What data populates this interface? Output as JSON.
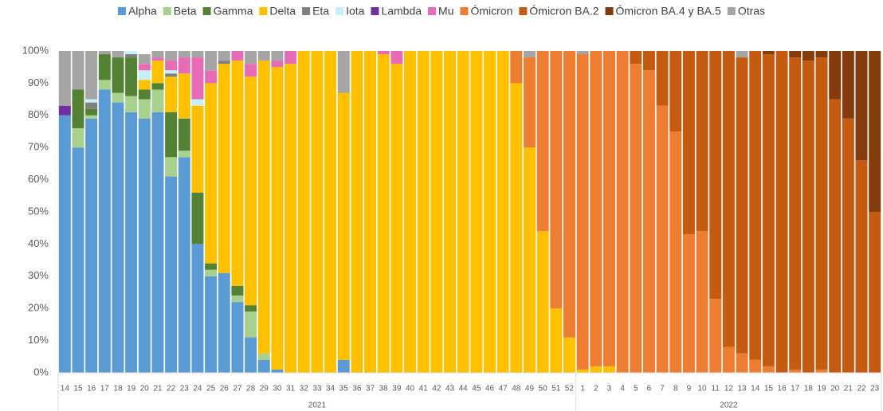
{
  "chart_data": {
    "type": "stacked_bar_100",
    "categories": [
      "14",
      "15",
      "16",
      "17",
      "18",
      "19",
      "20",
      "21",
      "22",
      "23",
      "24",
      "25",
      "26",
      "27",
      "28",
      "29",
      "30",
      "31",
      "32",
      "33",
      "34",
      "35",
      "36",
      "37",
      "38",
      "39",
      "40",
      "41",
      "42",
      "43",
      "44",
      "45",
      "46",
      "47",
      "48",
      "49",
      "50",
      "51",
      "52",
      "1",
      "2",
      "3",
      "4",
      "5",
      "6",
      "7",
      "8",
      "9",
      "10",
      "11",
      "12",
      "13",
      "14",
      "15",
      "16",
      "17",
      "18",
      "19",
      "20",
      "21",
      "22",
      "23"
    ],
    "category_groups": [
      {
        "label": "2021",
        "span": 39
      },
      {
        "label": "2022",
        "span": 23
      }
    ],
    "ylim": [
      0,
      100
    ],
    "yticks": [
      {
        "value": 0,
        "label": "0%"
      },
      {
        "value": 10,
        "label": "10%"
      },
      {
        "value": 20,
        "label": "20%"
      },
      {
        "value": 30,
        "label": "30%"
      },
      {
        "value": 40,
        "label": "40%"
      },
      {
        "value": 50,
        "label": "50%"
      },
      {
        "value": 60,
        "label": "60%"
      },
      {
        "value": 70,
        "label": "70%"
      },
      {
        "value": 80,
        "label": "80%"
      },
      {
        "value": 90,
        "label": "90%"
      },
      {
        "value": 100,
        "label": "100%"
      }
    ],
    "grid": false,
    "legend": "top",
    "series": [
      {
        "name": "Alpha",
        "color": "#5b9bd5",
        "values": [
          80,
          70,
          79,
          88,
          84,
          81,
          79,
          81,
          61,
          67,
          40,
          30,
          31,
          22,
          11,
          4,
          1,
          0,
          0,
          0,
          0,
          4,
          0,
          0,
          0,
          0,
          0,
          0,
          0,
          0,
          0,
          0,
          0,
          0,
          0,
          0,
          0,
          0,
          0,
          0,
          0,
          0,
          0,
          0,
          0,
          0,
          0,
          0,
          0,
          0,
          0,
          0,
          0,
          0,
          0,
          0,
          0,
          0,
          0,
          0,
          0,
          0
        ]
      },
      {
        "name": "Beta",
        "color": "#a9d18e",
        "values": [
          0,
          6,
          1,
          3,
          3,
          5,
          6,
          7,
          6,
          2,
          0,
          2,
          0,
          2,
          8,
          2,
          0,
          0,
          0,
          0,
          0,
          0,
          0,
          0,
          0,
          0,
          0,
          0,
          0,
          0,
          0,
          0,
          0,
          0,
          0,
          0,
          0,
          0,
          0,
          0,
          0,
          0,
          0,
          0,
          0,
          0,
          0,
          0,
          0,
          0,
          0,
          0,
          0,
          0,
          0,
          0,
          0,
          0,
          0,
          0,
          0,
          0
        ]
      },
      {
        "name": "Gamma",
        "color": "#548235",
        "values": [
          0,
          12,
          2,
          8,
          11,
          12,
          3,
          2,
          14,
          10,
          16,
          2,
          0,
          3,
          2,
          0,
          0,
          0,
          0,
          0,
          0,
          0,
          0,
          0,
          0,
          0,
          0,
          0,
          0,
          0,
          0,
          0,
          0,
          0,
          0,
          0,
          0,
          0,
          0,
          0,
          0,
          0,
          0,
          0,
          0,
          0,
          0,
          0,
          0,
          0,
          0,
          0,
          0,
          0,
          0,
          0,
          0,
          0,
          0,
          0,
          0,
          0
        ]
      },
      {
        "name": "Delta",
        "color": "#ffc000",
        "values": [
          0,
          0,
          0,
          0,
          0,
          0,
          3,
          7,
          11,
          14,
          27,
          56,
          65,
          70,
          71,
          91,
          94,
          96,
          100,
          100,
          100,
          83,
          100,
          100,
          99,
          96,
          100,
          100,
          100,
          100,
          100,
          100,
          100,
          100,
          90,
          70,
          44,
          20,
          11,
          1,
          2,
          2,
          0,
          0,
          0,
          0,
          0,
          0,
          0,
          0,
          0,
          0,
          0,
          0,
          0,
          0,
          0,
          0,
          0,
          0,
          0,
          0
        ]
      },
      {
        "name": "Eta",
        "color": "#7f7f7f",
        "values": [
          0,
          0,
          2,
          0,
          0,
          1,
          0,
          0,
          1,
          0,
          0,
          0,
          1,
          0,
          0,
          0,
          0,
          0,
          0,
          0,
          0,
          0,
          0,
          0,
          0,
          0,
          0,
          0,
          0,
          0,
          0,
          0,
          0,
          0,
          0,
          0,
          0,
          0,
          0,
          0,
          0,
          0,
          0,
          0,
          0,
          0,
          0,
          0,
          0,
          0,
          0,
          0,
          0,
          0,
          0,
          0,
          0,
          0,
          0,
          0,
          0,
          0
        ]
      },
      {
        "name": "Iota",
        "color": "#c5f0f5",
        "values": [
          0,
          0,
          1,
          0,
          0,
          1,
          3,
          0,
          1,
          0,
          2,
          0,
          0,
          0,
          0,
          0,
          0,
          0,
          0,
          0,
          0,
          0,
          0,
          0,
          0,
          0,
          0,
          0,
          0,
          0,
          0,
          0,
          0,
          0,
          0,
          0,
          0,
          0,
          0,
          0,
          0,
          0,
          0,
          0,
          0,
          0,
          0,
          0,
          0,
          0,
          0,
          0,
          0,
          0,
          0,
          0,
          0,
          0,
          0,
          0,
          0,
          0
        ]
      },
      {
        "name": "Lambda",
        "color": "#7030a0",
        "values": [
          3,
          0,
          0,
          0,
          0,
          0,
          0,
          0,
          0,
          0,
          0,
          0,
          0,
          0,
          0,
          0,
          0,
          0,
          0,
          0,
          0,
          0,
          0,
          0,
          0,
          0,
          0,
          0,
          0,
          0,
          0,
          0,
          0,
          0,
          0,
          0,
          0,
          0,
          0,
          0,
          0,
          0,
          0,
          0,
          0,
          0,
          0,
          0,
          0,
          0,
          0,
          0,
          0,
          0,
          0,
          0,
          0,
          0,
          0,
          0,
          0,
          0
        ]
      },
      {
        "name": "Mu",
        "color": "#e86bb5",
        "values": [
          0,
          0,
          0,
          0,
          0,
          0,
          2,
          1,
          3,
          5,
          13,
          4,
          0,
          3,
          4,
          0,
          2,
          4,
          0,
          0,
          0,
          0,
          0,
          0,
          1,
          4,
          0,
          0,
          0,
          0,
          0,
          0,
          0,
          0,
          0,
          0,
          0,
          0,
          0,
          0,
          0,
          0,
          0,
          0,
          0,
          0,
          0,
          0,
          0,
          0,
          0,
          0,
          0,
          0,
          0,
          0,
          0,
          0,
          0,
          0,
          0,
          0
        ]
      },
      {
        "name": "Ómicron",
        "color": "#ed7d31",
        "values": [
          0,
          0,
          0,
          0,
          0,
          0,
          0,
          0,
          0,
          0,
          0,
          0,
          0,
          0,
          0,
          0,
          0,
          0,
          0,
          0,
          0,
          0,
          0,
          0,
          0,
          0,
          0,
          0,
          0,
          0,
          0,
          0,
          0,
          0,
          10,
          28,
          56,
          80,
          89,
          98,
          98,
          98,
          100,
          96,
          94,
          83,
          75,
          43,
          44,
          23,
          8,
          6,
          4,
          2,
          0,
          1,
          0,
          1,
          0,
          0,
          0,
          0
        ]
      },
      {
        "name": "Ómicron BA.2",
        "color": "#c55a11",
        "values": [
          0,
          0,
          0,
          0,
          0,
          0,
          0,
          0,
          0,
          0,
          0,
          0,
          0,
          0,
          0,
          0,
          0,
          0,
          0,
          0,
          0,
          0,
          0,
          0,
          0,
          0,
          0,
          0,
          0,
          0,
          0,
          0,
          0,
          0,
          0,
          0,
          0,
          0,
          0,
          0,
          0,
          0,
          0,
          4,
          6,
          17,
          25,
          57,
          56,
          77,
          92,
          92,
          96,
          97,
          100,
          97,
          97,
          97,
          85,
          79,
          66,
          50
        ]
      },
      {
        "name": "Ómicron BA.4 y BA.5",
        "color": "#843c0c",
        "values": [
          0,
          0,
          0,
          0,
          0,
          0,
          0,
          0,
          0,
          0,
          0,
          0,
          0,
          0,
          0,
          0,
          0,
          0,
          0,
          0,
          0,
          0,
          0,
          0,
          0,
          0,
          0,
          0,
          0,
          0,
          0,
          0,
          0,
          0,
          0,
          0,
          0,
          0,
          0,
          0,
          0,
          0,
          0,
          0,
          0,
          0,
          0,
          0,
          0,
          0,
          0,
          0,
          0,
          1,
          0,
          2,
          3,
          2,
          15,
          21,
          34,
          50
        ]
      },
      {
        "name": "Otras",
        "color": "#a5a5a5",
        "values": [
          17,
          12,
          15,
          1,
          2,
          0,
          3,
          2,
          3,
          2,
          2,
          6,
          3,
          0,
          4,
          3,
          3,
          0,
          0,
          0,
          0,
          13,
          0,
          0,
          0,
          0,
          0,
          0,
          0,
          0,
          0,
          0,
          0,
          0,
          0,
          2,
          0,
          0,
          0,
          1,
          0,
          0,
          0,
          0,
          0,
          0,
          0,
          0,
          0,
          0,
          0,
          2,
          0,
          0,
          0,
          0,
          0,
          0,
          0,
          0,
          0,
          0
        ]
      }
    ]
  }
}
